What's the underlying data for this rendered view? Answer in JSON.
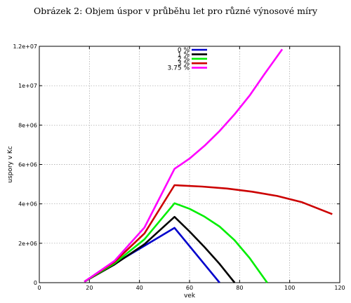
{
  "caption": "Obrázek 2: Objem úspor v průběhu let pro různé výnosové míry",
  "chart_data": {
    "type": "line",
    "xlabel": "vek",
    "ylabel": "uspory v Kc",
    "xlim": [
      0,
      120
    ],
    "ylim": [
      0,
      12000000
    ],
    "xticks": [
      "0",
      "20",
      "40",
      "60",
      "80",
      "100",
      "120"
    ],
    "yticks": [
      "0",
      "2e+06",
      "4e+06",
      "6e+06",
      "8e+06",
      "1e+07",
      "1.2e+07"
    ],
    "grid": true,
    "legend_position": "top-center",
    "series": [
      {
        "name": "0 %",
        "color": "#0000cc",
        "x": [
          18,
          54,
          72
        ],
        "y": [
          50000,
          2780000,
          0
        ]
      },
      {
        "name": "1 %",
        "color": "#000000",
        "x": [
          18,
          30,
          42,
          54,
          60,
          66,
          72,
          78
        ],
        "y": [
          50000,
          920000,
          1950000,
          3340000,
          2600000,
          1800000,
          950000,
          0
        ]
      },
      {
        "name": "2 %",
        "color": "#00ee00",
        "x": [
          18,
          30,
          42,
          54,
          60,
          66,
          72,
          78,
          84,
          91
        ],
        "y": [
          50000,
          980000,
          2200000,
          4030000,
          3750000,
          3350000,
          2850000,
          2150000,
          1250000,
          0
        ]
      },
      {
        "name": "3 %",
        "color": "#cc0000",
        "x": [
          18,
          30,
          42,
          54,
          65,
          75,
          85,
          95,
          105,
          117
        ],
        "y": [
          50000,
          1050000,
          2500000,
          4950000,
          4880000,
          4780000,
          4620000,
          4400000,
          4080000,
          3480000
        ]
      },
      {
        "name": "3.75 %",
        "color": "#ff00ff",
        "x": [
          18,
          30,
          42,
          54,
          60,
          66,
          72,
          78,
          84,
          90,
          97
        ],
        "y": [
          50000,
          1100000,
          2800000,
          5780000,
          6300000,
          6950000,
          7700000,
          8550000,
          9500000,
          10600000,
          11850000
        ]
      }
    ]
  }
}
